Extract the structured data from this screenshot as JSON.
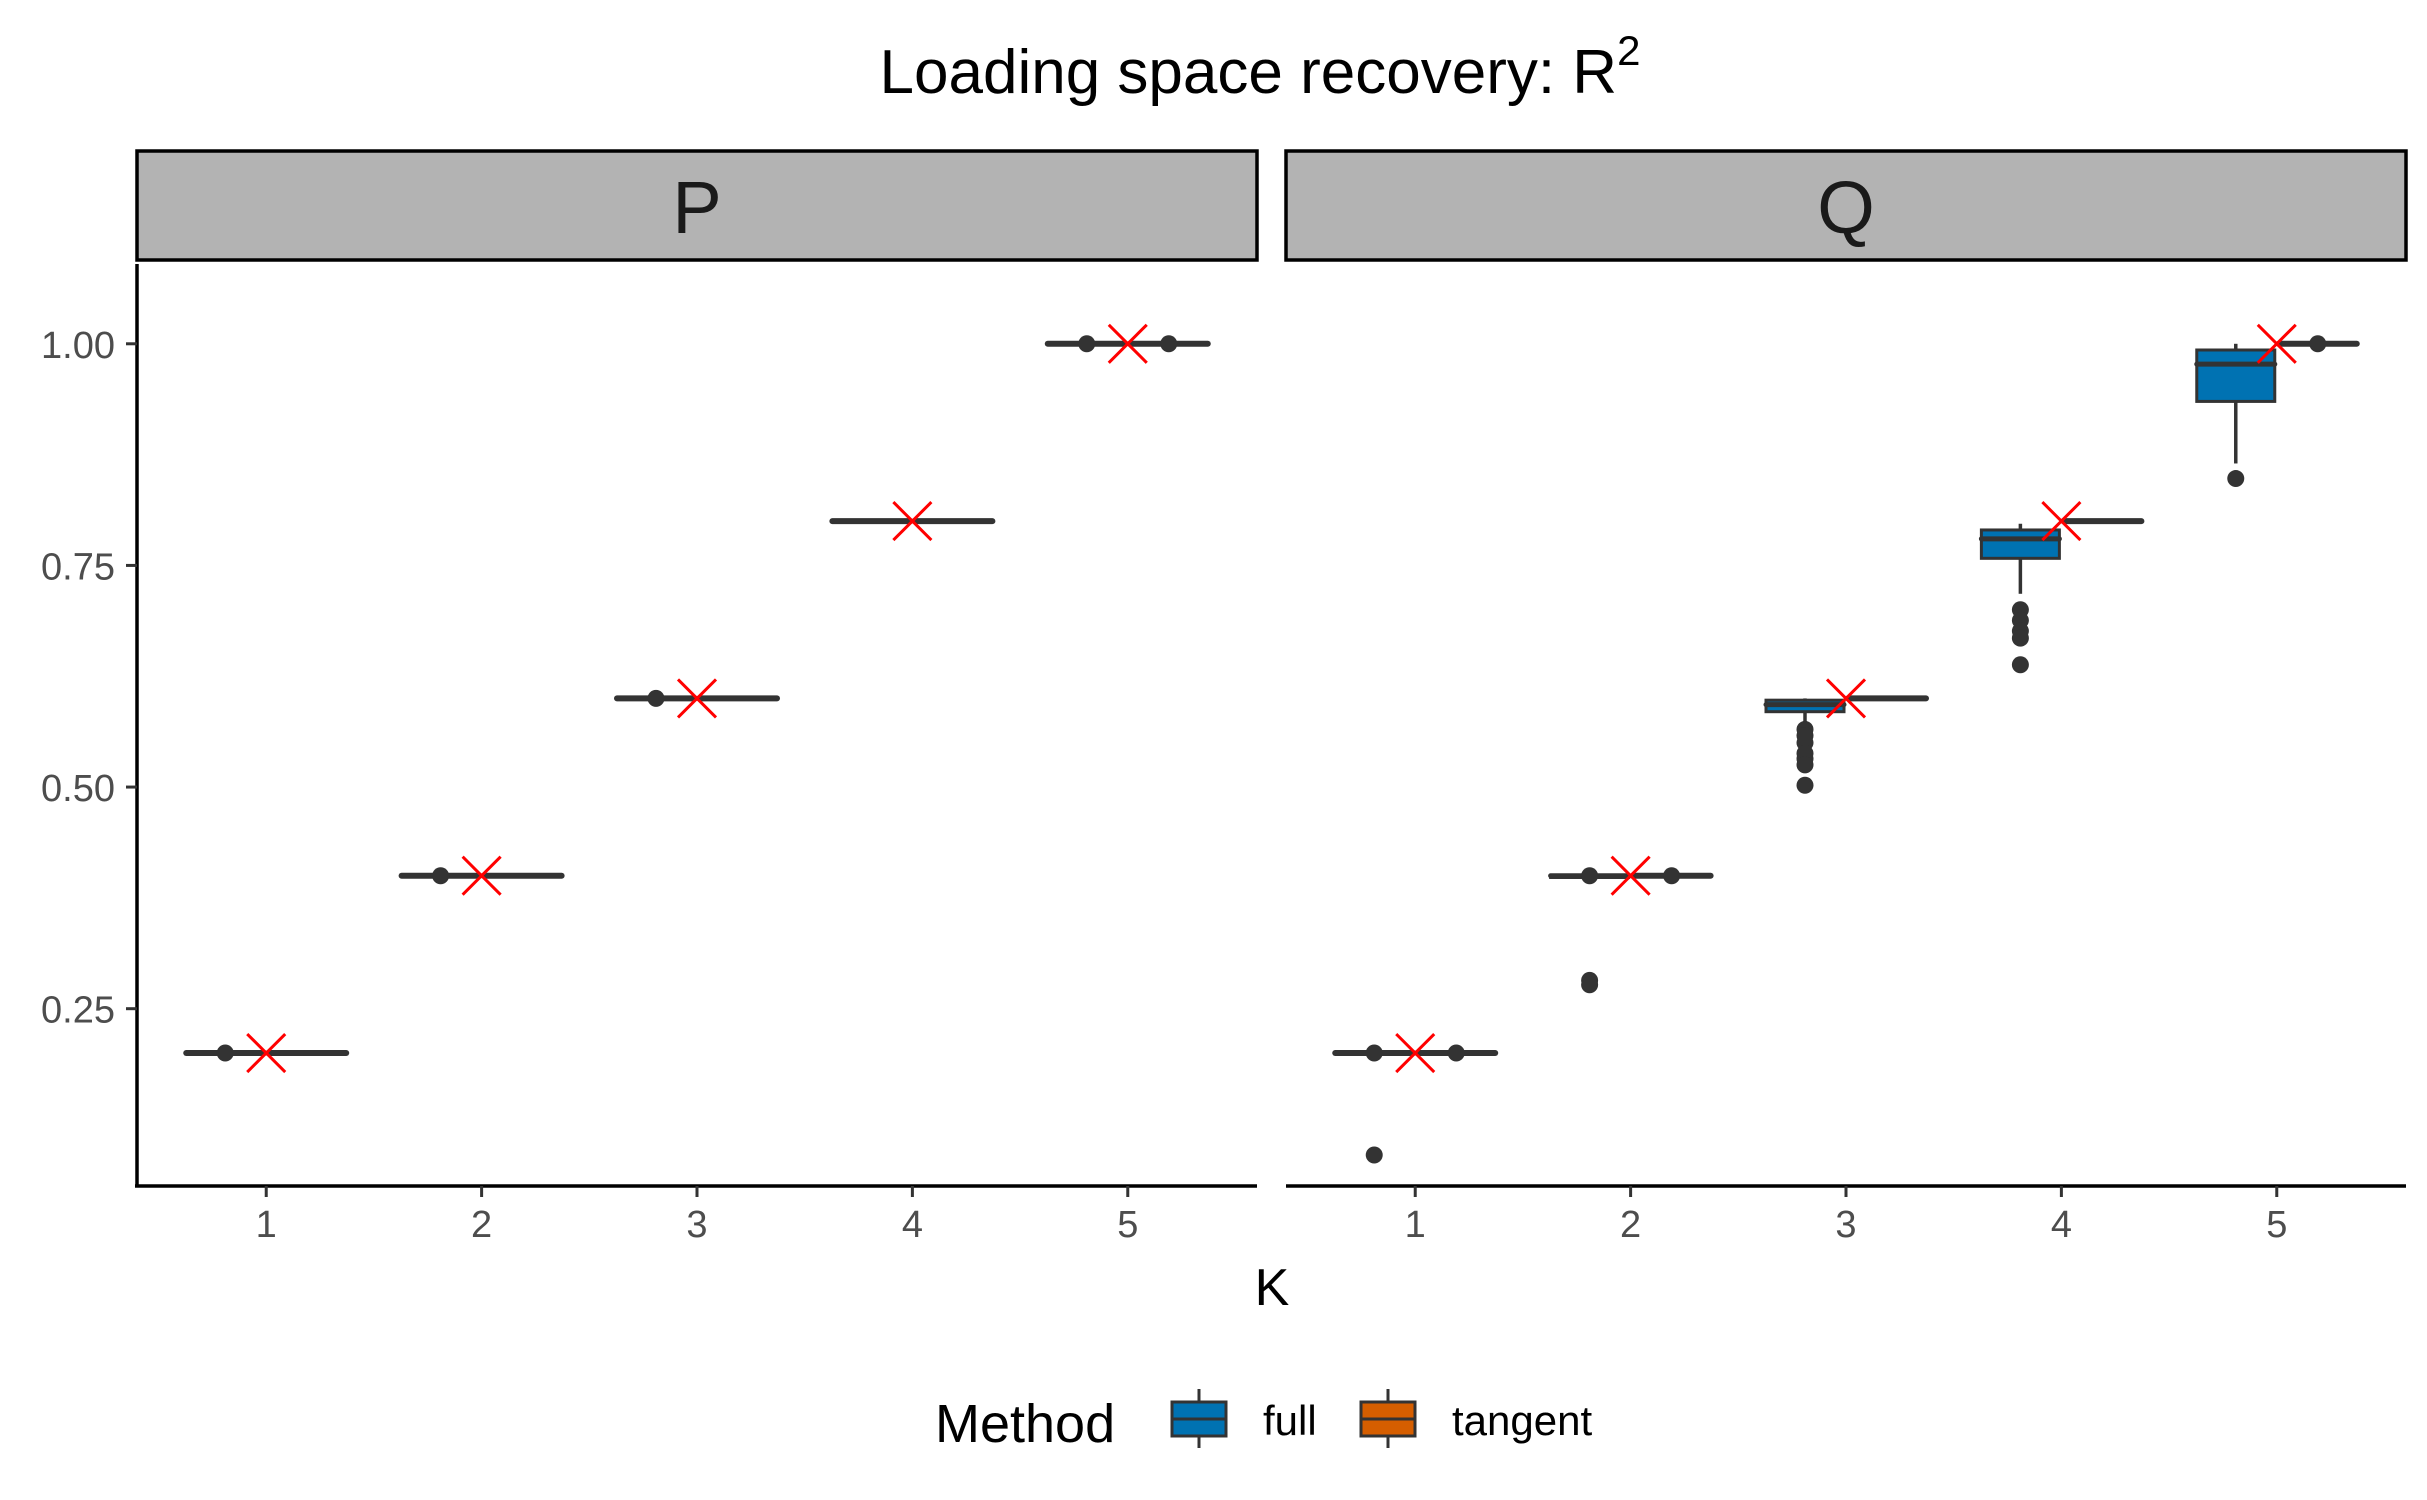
{
  "chart_data": {
    "type": "boxplot",
    "title_main": "Loading space recovery: R",
    "title_sup": "2",
    "xlabel": "K",
    "ylabel": "",
    "ylim": [
      0.05,
      1.09
    ],
    "y_ticks": [
      0.25,
      0.5,
      0.75,
      1.0
    ],
    "y_tick_labels": [
      "0.25",
      "0.50",
      "0.75",
      "1.00"
    ],
    "categories": [
      "1",
      "2",
      "3",
      "4",
      "5"
    ],
    "legend": {
      "title": "Method",
      "position": "bottom",
      "items": [
        {
          "label": "full",
          "color": "#0072B2"
        },
        {
          "label": "tangent",
          "color": "#D55E00"
        }
      ]
    },
    "reference_marker": {
      "shape": "x",
      "color": "#FF0000"
    },
    "facets": [
      {
        "label": "P",
        "boxes": [
          {
            "k": 1,
            "method": "full",
            "q1": 0.2,
            "median": 0.2,
            "q3": 0.2,
            "whisker_low": 0.2,
            "whisker_high": 0.2,
            "outliers": []
          },
          {
            "k": 1,
            "method": "tangent",
            "q1": 0.2,
            "median": 0.2,
            "q3": 0.2,
            "whisker_low": 0.2,
            "whisker_high": 0.2,
            "outliers": []
          },
          {
            "k": 2,
            "method": "full",
            "q1": 0.4,
            "median": 0.4,
            "q3": 0.4,
            "whisker_low": 0.4,
            "whisker_high": 0.4,
            "outliers": []
          },
          {
            "k": 2,
            "method": "tangent",
            "q1": 0.4,
            "median": 0.4,
            "q3": 0.4,
            "whisker_low": 0.4,
            "whisker_high": 0.4,
            "outliers": []
          },
          {
            "k": 3,
            "method": "full",
            "q1": 0.6,
            "median": 0.6,
            "q3": 0.6,
            "whisker_low": 0.6,
            "whisker_high": 0.6,
            "outliers": []
          },
          {
            "k": 3,
            "method": "tangent",
            "q1": 0.6,
            "median": 0.6,
            "q3": 0.6,
            "whisker_low": 0.6,
            "whisker_high": 0.6,
            "outliers": []
          },
          {
            "k": 4,
            "method": "full",
            "q1": 0.8,
            "median": 0.8,
            "q3": 0.8,
            "whisker_low": 0.8,
            "whisker_high": 0.8,
            "outliers": []
          },
          {
            "k": 4,
            "method": "tangent",
            "q1": 0.8,
            "median": 0.8,
            "q3": 0.8,
            "whisker_low": 0.8,
            "whisker_high": 0.8,
            "outliers": []
          },
          {
            "k": 5,
            "method": "full",
            "q1": 1.0,
            "median": 1.0,
            "q3": 1.0,
            "whisker_low": 1.0,
            "whisker_high": 1.0,
            "outliers": []
          },
          {
            "k": 5,
            "method": "tangent",
            "q1": 1.0,
            "median": 1.0,
            "q3": 1.0,
            "whisker_low": 1.0,
            "whisker_high": 1.0,
            "outliers": []
          }
        ],
        "mean_points": [
          {
            "k": 1,
            "method": "full",
            "value": 0.2
          },
          {
            "k": 2,
            "method": "full",
            "value": 0.4
          },
          {
            "k": 3,
            "method": "full",
            "value": 0.6
          },
          {
            "k": 5,
            "method": "full",
            "value": 1.0
          },
          {
            "k": 5,
            "method": "tangent",
            "value": 1.0
          }
        ],
        "reference": [
          0.2,
          0.4,
          0.6,
          0.8,
          1.0
        ]
      },
      {
        "label": "Q",
        "boxes": [
          {
            "k": 1,
            "method": "full",
            "q1": 0.2,
            "median": 0.2,
            "q3": 0.2,
            "whisker_low": 0.2,
            "whisker_high": 0.2,
            "outliers": [
              0.085
            ]
          },
          {
            "k": 1,
            "method": "tangent",
            "q1": 0.2,
            "median": 0.2,
            "q3": 0.2,
            "whisker_low": 0.2,
            "whisker_high": 0.2,
            "outliers": []
          },
          {
            "k": 2,
            "method": "full",
            "q1": 0.398,
            "median": 0.4,
            "q3": 0.4,
            "whisker_low": 0.396,
            "whisker_high": 0.4,
            "outliers": [
              0.282,
              0.277
            ]
          },
          {
            "k": 2,
            "method": "tangent",
            "q1": 0.4,
            "median": 0.4,
            "q3": 0.4,
            "whisker_low": 0.4,
            "whisker_high": 0.4,
            "outliers": []
          },
          {
            "k": 3,
            "method": "full",
            "q1": 0.585,
            "median": 0.593,
            "q3": 0.598,
            "whisker_low": 0.572,
            "whisker_high": 0.6,
            "outliers": [
              0.565,
              0.558,
              0.55,
              0.538,
              0.532,
              0.525,
              0.502
            ]
          },
          {
            "k": 3,
            "method": "tangent",
            "q1": 0.6,
            "median": 0.6,
            "q3": 0.6,
            "whisker_low": 0.6,
            "whisker_high": 0.6,
            "outliers": []
          },
          {
            "k": 4,
            "method": "full",
            "q1": 0.758,
            "median": 0.78,
            "q3": 0.79,
            "whisker_low": 0.718,
            "whisker_high": 0.797,
            "outliers": [
              0.7,
              0.688,
              0.676,
              0.668,
              0.638
            ]
          },
          {
            "k": 4,
            "method": "tangent",
            "q1": 0.8,
            "median": 0.8,
            "q3": 0.8,
            "whisker_low": 0.8,
            "whisker_high": 0.8,
            "outliers": []
          },
          {
            "k": 5,
            "method": "full",
            "q1": 0.935,
            "median": 0.977,
            "q3": 0.993,
            "whisker_low": 0.865,
            "whisker_high": 1.0,
            "outliers": [
              0.848
            ]
          },
          {
            "k": 5,
            "method": "tangent",
            "q1": 1.0,
            "median": 1.0,
            "q3": 1.0,
            "whisker_low": 1.0,
            "whisker_high": 1.0,
            "outliers": []
          }
        ],
        "mean_points": [
          {
            "k": 1,
            "method": "full",
            "value": 0.2
          },
          {
            "k": 1,
            "method": "tangent",
            "value": 0.2
          },
          {
            "k": 2,
            "method": "full",
            "value": 0.4
          },
          {
            "k": 2,
            "method": "tangent",
            "value": 0.4
          },
          {
            "k": 5,
            "method": "tangent",
            "value": 1.0
          }
        ],
        "reference": [
          0.2,
          0.4,
          0.6,
          0.8,
          1.0
        ]
      }
    ]
  }
}
